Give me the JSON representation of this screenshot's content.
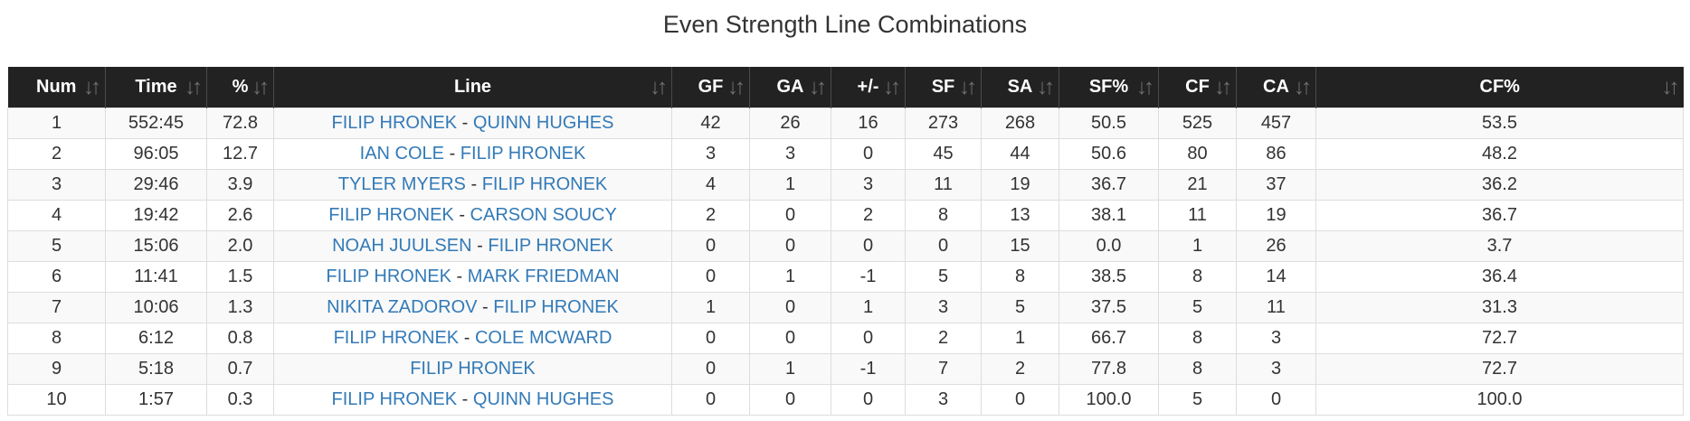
{
  "title": "Even Strength Line Combinations",
  "colors": {
    "header_bg": "#222222",
    "header_text": "#ffffff",
    "link": "#337ab7",
    "stripe": "#f9f9f9",
    "border": "#dddddd"
  },
  "sort_icon": "sort-arrows-icon",
  "columns": [
    {
      "label": "Num"
    },
    {
      "label": "Time"
    },
    {
      "label": "%"
    },
    {
      "label": "Line"
    },
    {
      "label": "GF"
    },
    {
      "label": "GA"
    },
    {
      "label": "+/-"
    },
    {
      "label": "SF"
    },
    {
      "label": "SA"
    },
    {
      "label": "SF%"
    },
    {
      "label": "CF"
    },
    {
      "label": "CA"
    },
    {
      "label": "CF%"
    }
  ],
  "separator": "-",
  "rows": [
    {
      "num": "1",
      "time": "552:45",
      "pct": "72.8",
      "players": [
        "FILIP HRONEK",
        "QUINN HUGHES"
      ],
      "gf": "42",
      "ga": "26",
      "pm": "16",
      "sf": "273",
      "sa": "268",
      "sfp": "50.5",
      "cf": "525",
      "ca": "457",
      "cfp": "53.5"
    },
    {
      "num": "2",
      "time": "96:05",
      "pct": "12.7",
      "players": [
        "IAN COLE",
        "FILIP HRONEK"
      ],
      "gf": "3",
      "ga": "3",
      "pm": "0",
      "sf": "45",
      "sa": "44",
      "sfp": "50.6",
      "cf": "80",
      "ca": "86",
      "cfp": "48.2"
    },
    {
      "num": "3",
      "time": "29:46",
      "pct": "3.9",
      "players": [
        "TYLER MYERS",
        "FILIP HRONEK"
      ],
      "gf": "4",
      "ga": "1",
      "pm": "3",
      "sf": "11",
      "sa": "19",
      "sfp": "36.7",
      "cf": "21",
      "ca": "37",
      "cfp": "36.2"
    },
    {
      "num": "4",
      "time": "19:42",
      "pct": "2.6",
      "players": [
        "FILIP HRONEK",
        "CARSON SOUCY"
      ],
      "gf": "2",
      "ga": "0",
      "pm": "2",
      "sf": "8",
      "sa": "13",
      "sfp": "38.1",
      "cf": "11",
      "ca": "19",
      "cfp": "36.7"
    },
    {
      "num": "5",
      "time": "15:06",
      "pct": "2.0",
      "players": [
        "NOAH JUULSEN",
        "FILIP HRONEK"
      ],
      "gf": "0",
      "ga": "0",
      "pm": "0",
      "sf": "0",
      "sa": "15",
      "sfp": "0.0",
      "cf": "1",
      "ca": "26",
      "cfp": "3.7"
    },
    {
      "num": "6",
      "time": "11:41",
      "pct": "1.5",
      "players": [
        "FILIP HRONEK",
        "MARK FRIEDMAN"
      ],
      "gf": "0",
      "ga": "1",
      "pm": "-1",
      "sf": "5",
      "sa": "8",
      "sfp": "38.5",
      "cf": "8",
      "ca": "14",
      "cfp": "36.4"
    },
    {
      "num": "7",
      "time": "10:06",
      "pct": "1.3",
      "players": [
        "NIKITA ZADOROV",
        "FILIP HRONEK"
      ],
      "gf": "1",
      "ga": "0",
      "pm": "1",
      "sf": "3",
      "sa": "5",
      "sfp": "37.5",
      "cf": "5",
      "ca": "11",
      "cfp": "31.3"
    },
    {
      "num": "8",
      "time": "6:12",
      "pct": "0.8",
      "players": [
        "FILIP HRONEK",
        "COLE MCWARD"
      ],
      "gf": "0",
      "ga": "0",
      "pm": "0",
      "sf": "2",
      "sa": "1",
      "sfp": "66.7",
      "cf": "8",
      "ca": "3",
      "cfp": "72.7"
    },
    {
      "num": "9",
      "time": "5:18",
      "pct": "0.7",
      "players": [
        "FILIP HRONEK"
      ],
      "gf": "0",
      "ga": "1",
      "pm": "-1",
      "sf": "7",
      "sa": "2",
      "sfp": "77.8",
      "cf": "8",
      "ca": "3",
      "cfp": "72.7"
    },
    {
      "num": "10",
      "time": "1:57",
      "pct": "0.3",
      "players": [
        "FILIP HRONEK",
        "QUINN HUGHES"
      ],
      "gf": "0",
      "ga": "0",
      "pm": "0",
      "sf": "3",
      "sa": "0",
      "sfp": "100.0",
      "cf": "5",
      "ca": "0",
      "cfp": "100.0"
    }
  ]
}
